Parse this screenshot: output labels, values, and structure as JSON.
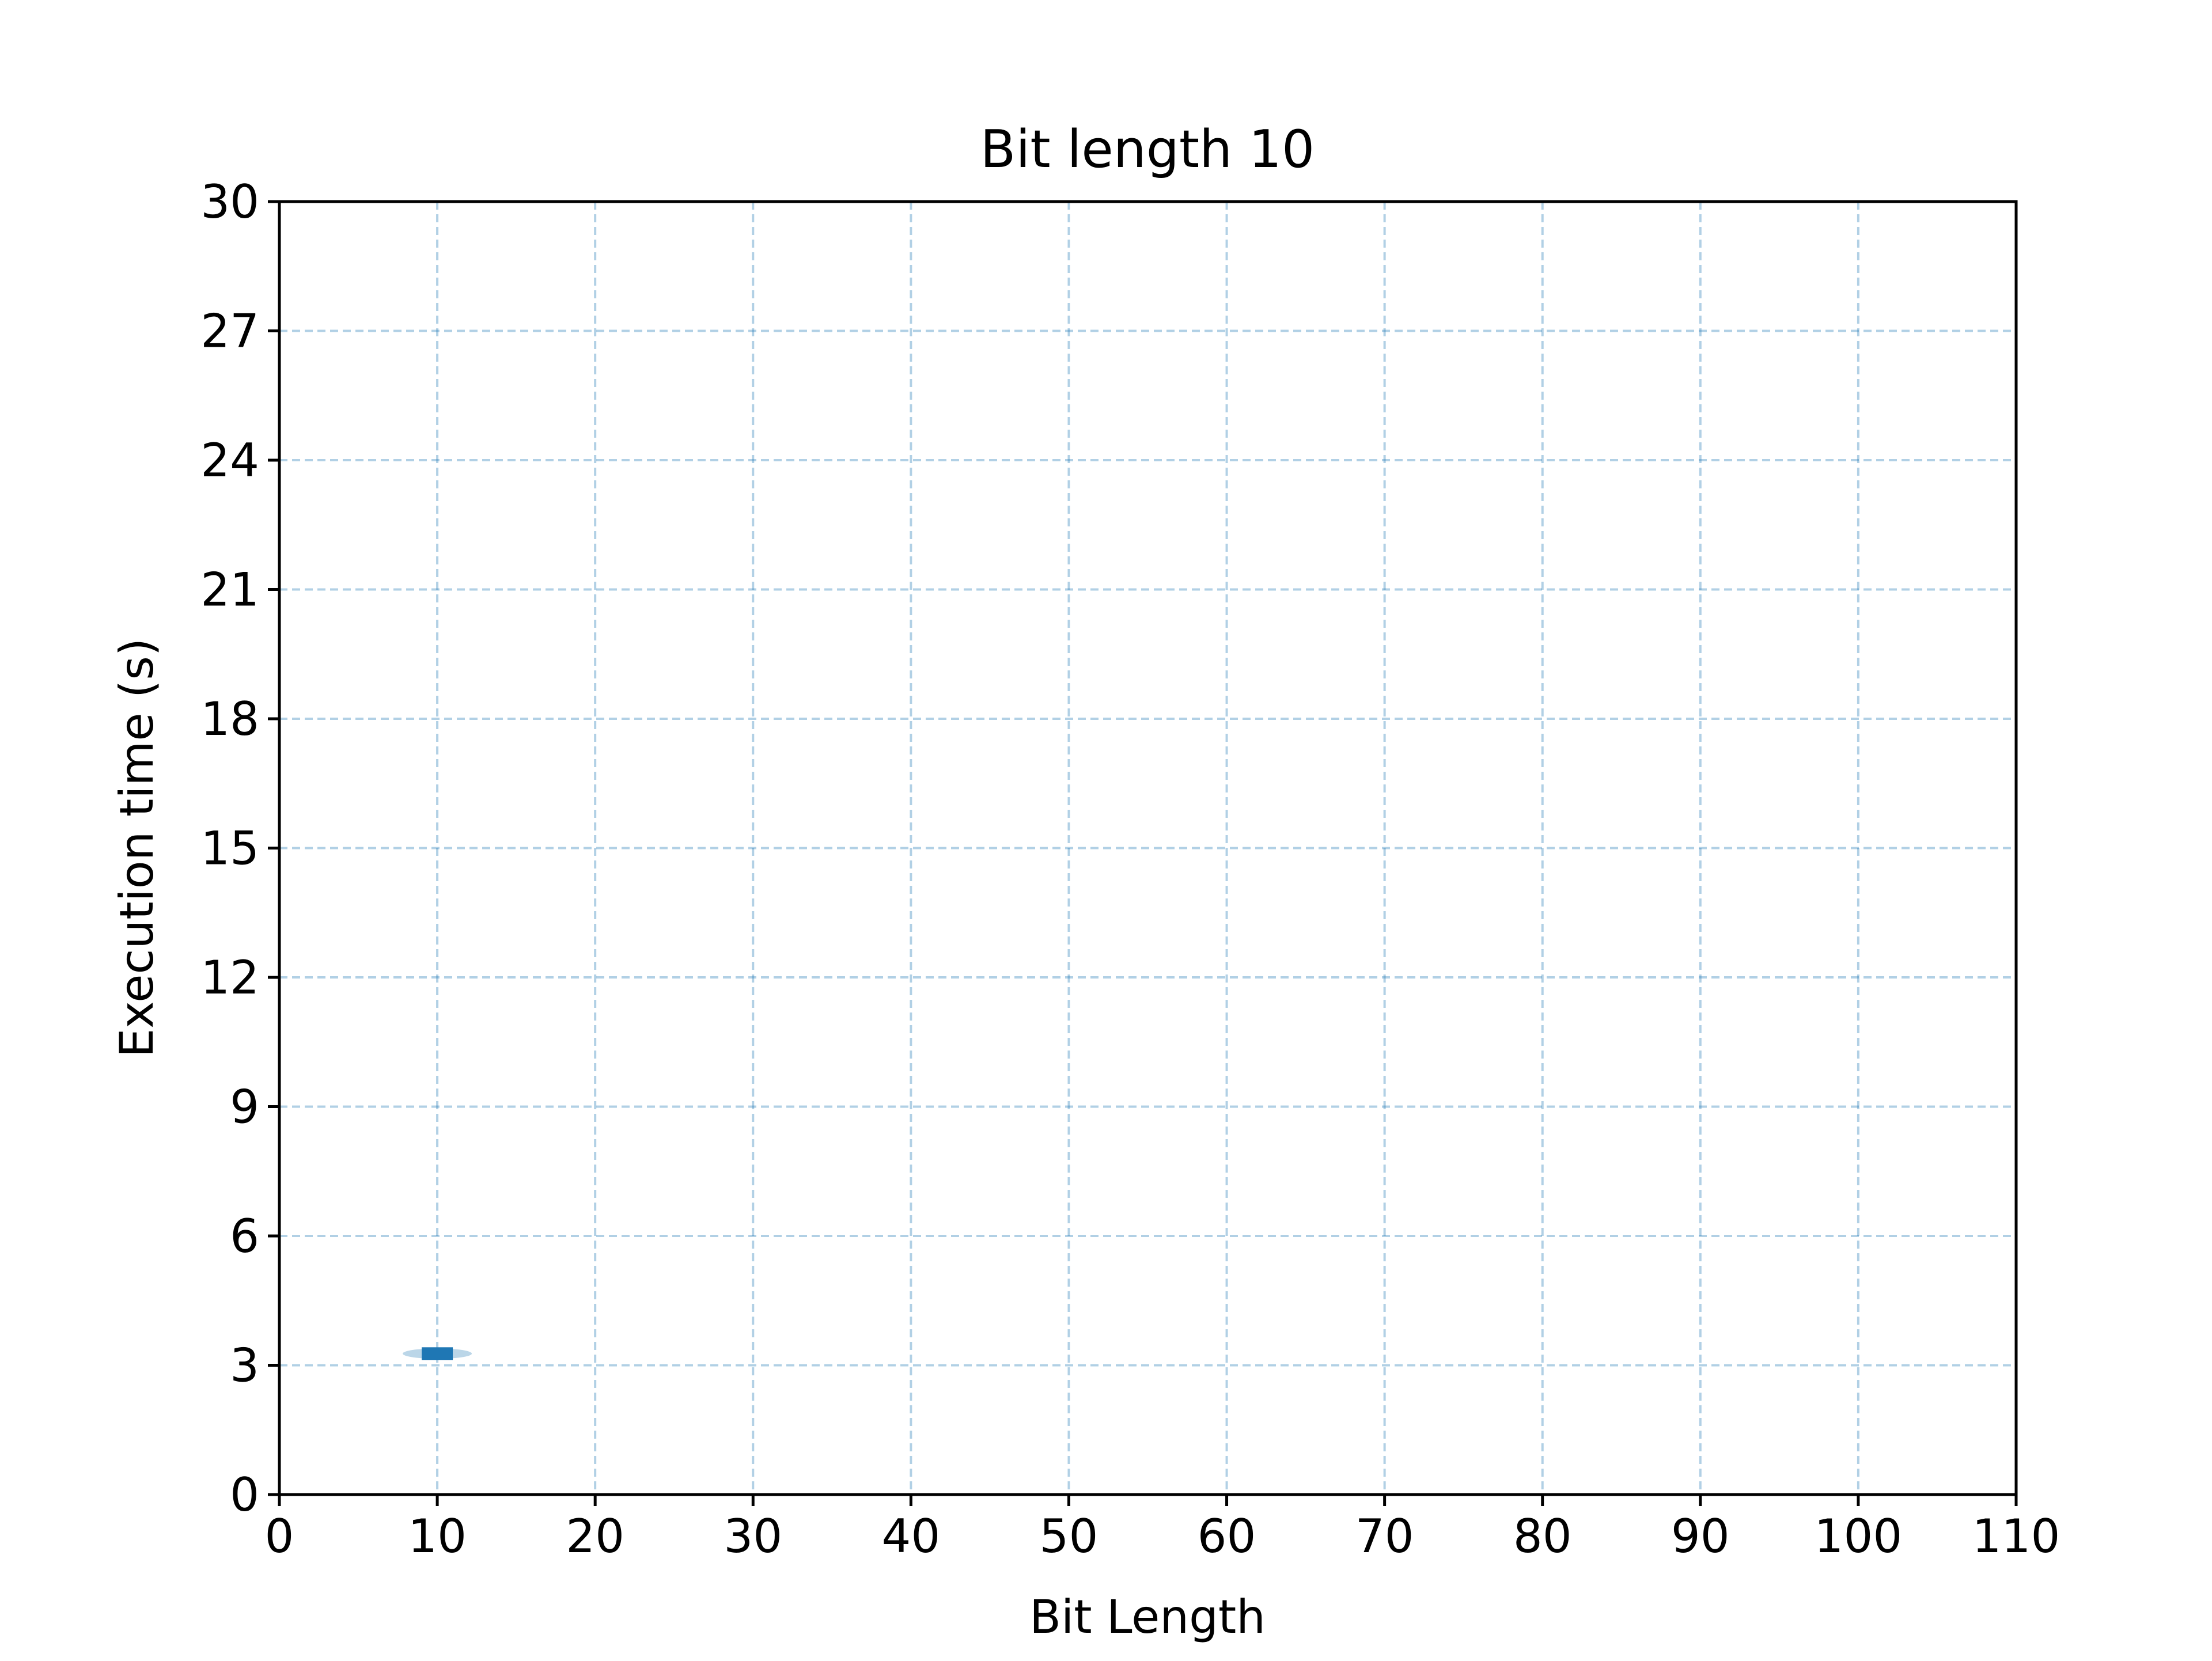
{
  "chart_data": {
    "type": "violin",
    "title": "Bit length 10",
    "xlabel": "Bit Length",
    "ylabel": "Execution time (s)",
    "xlim": [
      0,
      110
    ],
    "ylim": [
      0,
      30
    ],
    "xticks": [
      "0",
      "10",
      "20",
      "30",
      "40",
      "50",
      "60",
      "70",
      "80",
      "90",
      "100",
      "110"
    ],
    "yticks": [
      "0",
      "3",
      "6",
      "9",
      "12",
      "15",
      "18",
      "21",
      "24",
      "27",
      "30"
    ],
    "grid": true,
    "points": [
      {
        "x": 10,
        "median": 3.27,
        "min": 3.2,
        "max": 3.35
      }
    ],
    "colors": {
      "violin_fill": "#1f77b4",
      "box": "#1f77b4",
      "grid": "#1f77b4",
      "axes": "#000000"
    }
  }
}
